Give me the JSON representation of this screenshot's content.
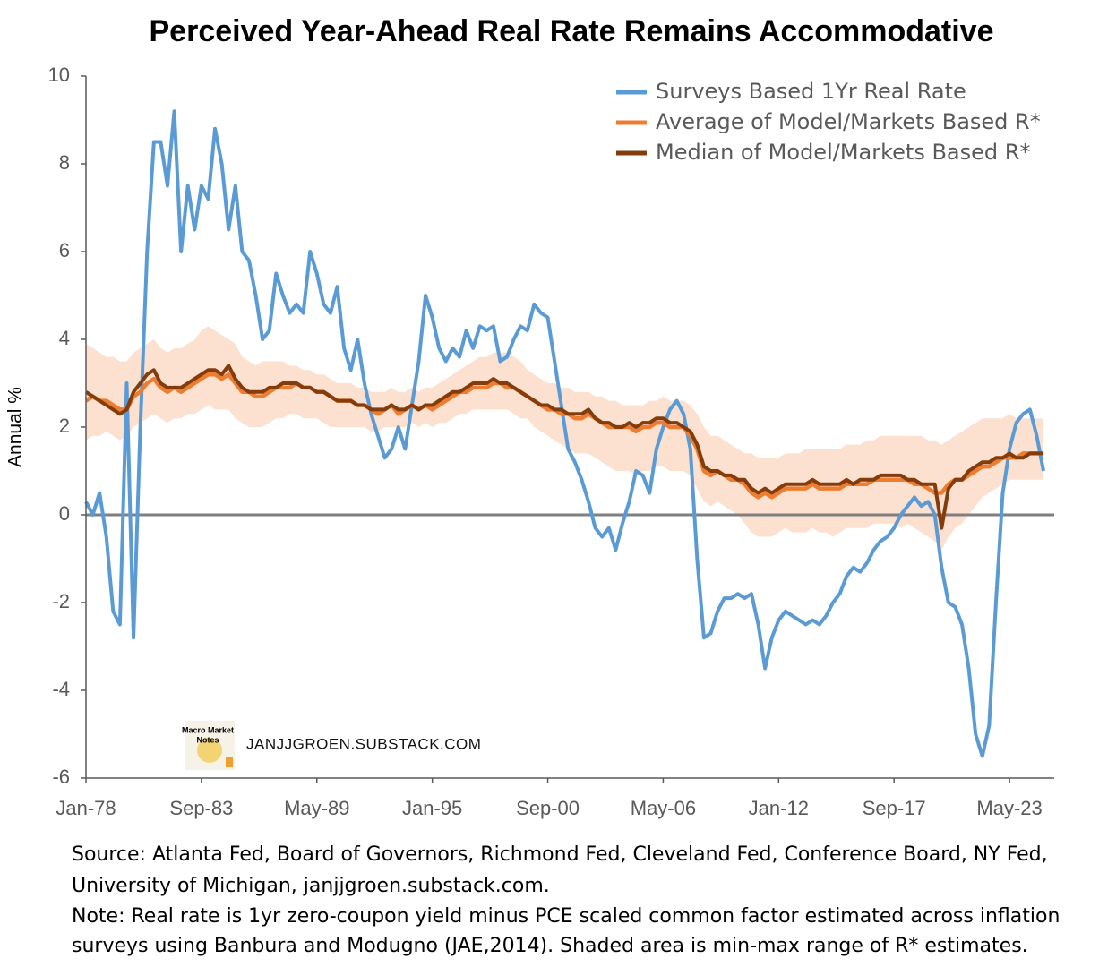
{
  "chart_data": {
    "type": "line",
    "title": "Perceived Year-Ahead Real Rate Remains Accommodative",
    "y_label": "Annual %",
    "watermark": "JANJJGROEN.SUBSTACK.COM",
    "logo_text": [
      "Macro Market",
      "Notes"
    ],
    "notes": [
      "Source: Atlanta Fed, Board of Governors, Richmond Fed, Cleveland Fed, Conference Board, NY Fed,",
      "University of Michigan, janjjgroen.substack.com.",
      "Note: Real rate is 1yr zero-coupon yield minus PCE scaled common factor estimated  across inflation",
      "surveys using Banbura and Modugno (JAE,2014). Shaded area is min-max range of R* estimates."
    ],
    "x": [
      "Jan-78",
      "May-78",
      "Sep-78",
      "Jan-79",
      "May-79",
      "Sep-79",
      "Jan-80",
      "May-80",
      "Sep-80",
      "Jan-81",
      "May-81",
      "Sep-81",
      "Jan-82",
      "May-82",
      "Sep-82",
      "Jan-83",
      "May-83",
      "Sep-83",
      "Jan-84",
      "May-84",
      "Sep-84",
      "Jan-85",
      "May-85",
      "Sep-85",
      "Jan-86",
      "May-86",
      "Sep-86",
      "Jan-87",
      "May-87",
      "Sep-87",
      "Jan-88",
      "May-88",
      "Sep-88",
      "Jan-89",
      "May-89",
      "Sep-89",
      "Jan-90",
      "May-90",
      "Sep-90",
      "Jan-91",
      "May-91",
      "Sep-91",
      "Jan-92",
      "May-92",
      "Sep-92",
      "Jan-93",
      "May-93",
      "Sep-93",
      "Jan-94",
      "May-94",
      "Sep-94",
      "Jan-95",
      "May-95",
      "Sep-95",
      "Jan-96",
      "May-96",
      "Sep-96",
      "Jan-97",
      "May-97",
      "Sep-97",
      "Jan-98",
      "May-98",
      "Sep-98",
      "Jan-99",
      "May-99",
      "Sep-99",
      "Jan-00",
      "May-00",
      "Sep-00",
      "Jan-01",
      "May-01",
      "Sep-01",
      "Jan-02",
      "May-02",
      "Sep-02",
      "Jan-03",
      "May-03",
      "Sep-03",
      "Jan-04",
      "May-04",
      "Sep-04",
      "Jan-05",
      "May-05",
      "Sep-05",
      "Jan-06",
      "May-06",
      "Sep-06",
      "Jan-07",
      "May-07",
      "Sep-07",
      "Jan-08",
      "May-08",
      "Sep-08",
      "Jan-09",
      "May-09",
      "Sep-09",
      "Jan-10",
      "May-10",
      "Sep-10",
      "Jan-11",
      "May-11",
      "Sep-11",
      "Jan-12",
      "May-12",
      "Sep-12",
      "Jan-13",
      "May-13",
      "Sep-13",
      "Jan-14",
      "May-14",
      "Sep-14",
      "Jan-15",
      "May-15",
      "Sep-15",
      "Jan-16",
      "May-16",
      "Sep-16",
      "Jan-17",
      "May-17",
      "Sep-17",
      "Jan-18",
      "May-18",
      "Sep-18",
      "Jan-19",
      "May-19",
      "Sep-19",
      "Jan-20",
      "May-20",
      "Sep-20",
      "Jan-21",
      "May-21",
      "Sep-21",
      "Jan-22",
      "May-22",
      "Sep-22",
      "Jan-23",
      "May-23",
      "Sep-23",
      "Jan-24",
      "May-24",
      "Sep-24",
      "Jan-25"
    ],
    "xticks": [
      "Jan-78",
      "Sep-83",
      "May-89",
      "Jan-95",
      "Sep-00",
      "May-06",
      "Jan-12",
      "Sep-17",
      "May-23"
    ],
    "ylim": [
      -6,
      10
    ],
    "yticks": [
      -6,
      -4,
      -2,
      0,
      2,
      4,
      6,
      8,
      10
    ],
    "band": {
      "color": "#fbd9c4",
      "low": [
        1.7,
        1.8,
        1.8,
        1.9,
        1.8,
        1.7,
        1.8,
        2.0,
        2.1,
        2.2,
        2.3,
        2.2,
        2.1,
        2.2,
        2.2,
        2.3,
        2.3,
        2.4,
        2.5,
        2.4,
        2.4,
        2.4,
        2.2,
        2.1,
        2.0,
        2.0,
        2.0,
        2.1,
        2.2,
        2.2,
        2.3,
        2.3,
        2.2,
        2.2,
        2.2,
        2.1,
        2.0,
        2.0,
        2.0,
        2.0,
        2.0,
        2.0,
        1.9,
        1.9,
        2.0,
        2.0,
        2.0,
        2.0,
        2.1,
        2.0,
        2.1,
        2.0,
        2.1,
        2.1,
        2.2,
        2.3,
        2.3,
        2.4,
        2.4,
        2.4,
        2.4,
        2.4,
        2.4,
        2.3,
        2.2,
        2.2,
        2.0,
        1.9,
        1.8,
        1.7,
        1.6,
        1.5,
        1.4,
        1.4,
        1.4,
        1.3,
        1.2,
        1.1,
        1.0,
        1.0,
        1.0,
        0.9,
        1.0,
        1.0,
        1.1,
        1.1,
        1.0,
        1.0,
        1.0,
        0.9,
        0.6,
        0.3,
        0.2,
        0.3,
        0.2,
        0.1,
        0.0,
        -0.2,
        -0.4,
        -0.5,
        -0.5,
        -0.5,
        -0.4,
        -0.3,
        -0.4,
        -0.4,
        -0.4,
        -0.3,
        -0.4,
        -0.4,
        -0.5,
        -0.4,
        -0.3,
        -0.3,
        -0.3,
        -0.3,
        -0.2,
        -0.2,
        -0.2,
        -0.2,
        -0.3,
        -0.2,
        -0.3,
        -0.4,
        -0.5,
        -0.6,
        -0.8,
        -0.5,
        -0.3,
        -0.2,
        0.0,
        0.2,
        0.4,
        0.5,
        0.6,
        0.7,
        0.8,
        0.8,
        0.8,
        0.8,
        0.8,
        0.8
      ],
      "high": [
        3.9,
        3.8,
        3.7,
        3.6,
        3.6,
        3.5,
        3.5,
        3.7,
        3.8,
        3.9,
        4.0,
        3.8,
        3.7,
        3.8,
        3.8,
        3.9,
        4.0,
        4.2,
        4.3,
        4.2,
        4.1,
        4.0,
        3.9,
        3.6,
        3.5,
        3.4,
        3.5,
        3.5,
        3.5,
        3.5,
        3.4,
        3.4,
        3.3,
        3.3,
        3.2,
        3.2,
        3.1,
        3.0,
        3.0,
        3.0,
        2.9,
        2.9,
        2.8,
        2.8,
        2.8,
        2.9,
        2.8,
        2.8,
        2.9,
        2.8,
        2.9,
        2.9,
        3.0,
        3.1,
        3.2,
        3.3,
        3.4,
        3.5,
        3.6,
        3.6,
        3.7,
        3.7,
        3.7,
        3.6,
        3.5,
        3.3,
        3.2,
        3.1,
        3.0,
        3.0,
        2.9,
        2.9,
        2.8,
        2.8,
        2.8,
        2.7,
        2.7,
        2.6,
        2.6,
        2.5,
        2.5,
        2.5,
        2.5,
        2.6,
        2.6,
        2.7,
        2.6,
        2.6,
        2.6,
        2.5,
        2.3,
        2.0,
        1.8,
        1.8,
        1.7,
        1.6,
        1.5,
        1.4,
        1.4,
        1.3,
        1.3,
        1.3,
        1.3,
        1.4,
        1.4,
        1.4,
        1.5,
        1.5,
        1.5,
        1.5,
        1.5,
        1.5,
        1.6,
        1.6,
        1.6,
        1.7,
        1.7,
        1.8,
        1.8,
        1.8,
        1.8,
        1.8,
        1.8,
        1.8,
        1.7,
        1.7,
        1.6,
        1.7,
        1.8,
        1.9,
        2.0,
        2.1,
        2.2,
        2.2,
        2.2,
        2.2,
        2.3,
        2.2,
        2.2,
        2.2,
        2.2,
        2.2
      ]
    },
    "series": [
      {
        "name": "Surveys Based 1Yr Real Rate",
        "color": "#5b9bd5",
        "values": [
          0.3,
          0.0,
          0.5,
          -0.5,
          -2.2,
          -2.5,
          3.0,
          -2.8,
          2.0,
          6.0,
          8.5,
          8.5,
          7.5,
          9.2,
          6.0,
          7.5,
          6.5,
          7.5,
          7.2,
          8.8,
          8.0,
          6.5,
          7.5,
          6.0,
          5.8,
          5.0,
          4.0,
          4.2,
          5.5,
          5.0,
          4.6,
          4.8,
          4.6,
          6.0,
          5.5,
          4.8,
          4.6,
          5.2,
          3.8,
          3.3,
          4.0,
          3.0,
          2.3,
          1.8,
          1.3,
          1.5,
          2.0,
          1.5,
          2.5,
          3.5,
          5.0,
          4.5,
          3.8,
          3.5,
          3.8,
          3.6,
          4.2,
          3.8,
          4.3,
          4.2,
          4.3,
          3.5,
          3.6,
          4.0,
          4.3,
          4.2,
          4.8,
          4.6,
          4.5,
          3.5,
          2.5,
          1.5,
          1.2,
          0.8,
          0.3,
          -0.3,
          -0.5,
          -0.3,
          -0.8,
          -0.2,
          0.3,
          1.0,
          0.9,
          0.5,
          1.5,
          2.0,
          2.4,
          2.6,
          2.3,
          1.5,
          -1.0,
          -2.8,
          -2.7,
          -2.2,
          -1.9,
          -1.9,
          -1.8,
          -1.9,
          -1.8,
          -2.5,
          -3.5,
          -2.8,
          -2.4,
          -2.2,
          -2.3,
          -2.4,
          -2.5,
          -2.4,
          -2.5,
          -2.3,
          -2.0,
          -1.8,
          -1.4,
          -1.2,
          -1.3,
          -1.1,
          -0.8,
          -0.6,
          -0.5,
          -0.3,
          0.0,
          0.2,
          0.4,
          0.2,
          0.3,
          0.0,
          -1.2,
          -2.0,
          -2.1,
          -2.5,
          -3.5,
          -5.0,
          -5.5,
          -4.8,
          -2.0,
          0.5,
          1.5,
          2.1,
          2.3,
          2.4,
          1.8,
          1.0
        ]
      },
      {
        "name": "Average of Model/Markets Based R*",
        "color": "#ed7d31",
        "values": [
          2.6,
          2.7,
          2.6,
          2.6,
          2.5,
          2.4,
          2.4,
          2.7,
          2.8,
          3.0,
          3.1,
          2.9,
          2.8,
          2.9,
          2.8,
          2.9,
          3.0,
          3.1,
          3.2,
          3.2,
          3.1,
          3.2,
          3.0,
          2.8,
          2.8,
          2.7,
          2.7,
          2.8,
          2.9,
          2.9,
          2.9,
          3.0,
          2.9,
          2.9,
          2.8,
          2.8,
          2.7,
          2.6,
          2.6,
          2.6,
          2.5,
          2.5,
          2.4,
          2.3,
          2.4,
          2.5,
          2.3,
          2.4,
          2.5,
          2.4,
          2.5,
          2.4,
          2.5,
          2.6,
          2.7,
          2.8,
          2.8,
          2.9,
          2.9,
          2.9,
          3.0,
          3.0,
          2.9,
          2.9,
          2.8,
          2.7,
          2.6,
          2.5,
          2.4,
          2.4,
          2.3,
          2.3,
          2.2,
          2.2,
          2.3,
          2.2,
          2.1,
          2.0,
          2.0,
          2.0,
          2.0,
          1.9,
          2.0,
          2.0,
          2.1,
          2.1,
          2.0,
          2.0,
          2.0,
          1.8,
          1.5,
          1.0,
          0.9,
          1.0,
          0.9,
          0.8,
          0.8,
          0.7,
          0.5,
          0.4,
          0.5,
          0.4,
          0.5,
          0.6,
          0.6,
          0.6,
          0.6,
          0.7,
          0.6,
          0.6,
          0.6,
          0.6,
          0.7,
          0.7,
          0.7,
          0.7,
          0.8,
          0.8,
          0.8,
          0.8,
          0.8,
          0.8,
          0.7,
          0.7,
          0.6,
          0.5,
          0.5,
          0.7,
          0.8,
          0.8,
          0.9,
          1.0,
          1.1,
          1.1,
          1.2,
          1.3,
          1.3,
          1.3,
          1.4,
          1.4,
          1.4,
          1.4
        ]
      },
      {
        "name": "Median of Model/Markets Based R*",
        "color": "#843c0c",
        "values": [
          2.8,
          2.7,
          2.6,
          2.5,
          2.4,
          2.3,
          2.4,
          2.8,
          3.0,
          3.2,
          3.3,
          3.0,
          2.9,
          2.9,
          2.9,
          3.0,
          3.1,
          3.2,
          3.3,
          3.3,
          3.2,
          3.4,
          3.1,
          2.9,
          2.8,
          2.8,
          2.8,
          2.9,
          2.9,
          3.0,
          3.0,
          3.0,
          2.9,
          2.9,
          2.8,
          2.8,
          2.7,
          2.6,
          2.6,
          2.6,
          2.5,
          2.5,
          2.4,
          2.4,
          2.4,
          2.5,
          2.4,
          2.4,
          2.5,
          2.4,
          2.5,
          2.5,
          2.6,
          2.7,
          2.8,
          2.8,
          2.9,
          3.0,
          3.0,
          3.0,
          3.1,
          3.0,
          3.0,
          2.9,
          2.8,
          2.7,
          2.6,
          2.5,
          2.5,
          2.4,
          2.4,
          2.3,
          2.3,
          2.3,
          2.4,
          2.2,
          2.1,
          2.1,
          2.0,
          2.0,
          2.1,
          2.0,
          2.1,
          2.1,
          2.2,
          2.2,
          2.1,
          2.1,
          2.0,
          1.9,
          1.6,
          1.1,
          1.0,
          1.0,
          0.9,
          0.9,
          0.8,
          0.8,
          0.6,
          0.5,
          0.6,
          0.5,
          0.6,
          0.7,
          0.7,
          0.7,
          0.7,
          0.8,
          0.7,
          0.7,
          0.7,
          0.7,
          0.8,
          0.7,
          0.8,
          0.8,
          0.8,
          0.9,
          0.9,
          0.9,
          0.9,
          0.8,
          0.8,
          0.7,
          0.7,
          0.7,
          -0.3,
          0.6,
          0.8,
          0.8,
          1.0,
          1.1,
          1.2,
          1.2,
          1.3,
          1.3,
          1.4,
          1.3,
          1.3,
          1.4,
          1.4,
          1.4
        ]
      }
    ]
  }
}
